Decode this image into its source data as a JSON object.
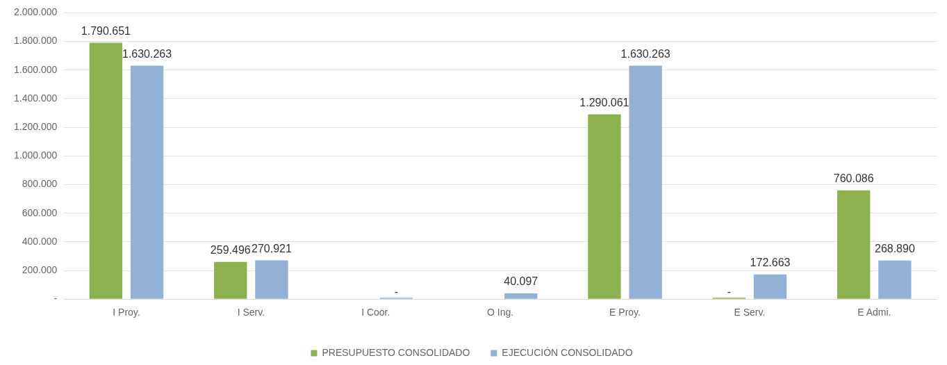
{
  "chart_data": {
    "type": "bar",
    "categories": [
      "I Proy.",
      "I Serv.",
      "I Coor.",
      "O Ing.",
      "E Proy.",
      "E Serv.",
      "E Admi."
    ],
    "series": [
      {
        "name": "PRESUPUESTO CONSOLIDADO",
        "color": "#8db14e",
        "values": [
          1790651,
          259496,
          null,
          null,
          1290061,
          0,
          760086
        ],
        "value_labels": [
          "1.790.651",
          "259.496",
          null,
          null,
          "1.290.061",
          "-",
          "760.086"
        ]
      },
      {
        "name": "EJECUCIÓN CONSOLIDADO",
        "color": "#93b1d5",
        "values": [
          1630263,
          270921,
          0,
          40097,
          1630263,
          172663,
          268890
        ],
        "value_labels": [
          "1.630.263",
          "270.921",
          "-",
          "40.097",
          "1.630.263",
          "172.663",
          "268.890"
        ]
      }
    ],
    "ylim": [
      0,
      2000000
    ],
    "yticks": [
      {
        "value": 0,
        "label": "-"
      },
      {
        "value": 200000,
        "label": "200.000"
      },
      {
        "value": 400000,
        "label": "400.000"
      },
      {
        "value": 600000,
        "label": "600.000"
      },
      {
        "value": 800000,
        "label": "800.000"
      },
      {
        "value": 1000000,
        "label": "1.000.000"
      },
      {
        "value": 1200000,
        "label": "1.200.000"
      },
      {
        "value": 1400000,
        "label": "1.400.000"
      },
      {
        "value": 1600000,
        "label": "1.600.000"
      },
      {
        "value": 1800000,
        "label": "1.800.000"
      },
      {
        "value": 2000000,
        "label": "2.000.000"
      }
    ],
    "grid": "y",
    "legend": "bottom"
  }
}
